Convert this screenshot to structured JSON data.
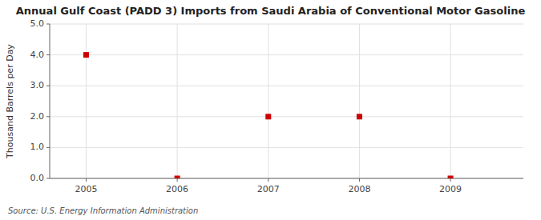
{
  "chart_data": {
    "type": "scatter",
    "title": "Annual Gulf Coast (PADD 3) Imports from Saudi Arabia of Conventional Motor Gasoline",
    "ylabel": "Thousand Barrels per Day",
    "source": "Source: U.S. Energy Information Administration",
    "x": [
      2005,
      2006,
      2007,
      2008,
      2009
    ],
    "values": [
      4.0,
      0.0,
      2.0,
      2.0,
      0.0
    ],
    "color": "#cc0000",
    "marker": "square",
    "xlim": [
      2004.6,
      2009.8
    ],
    "ylim": [
      0.0,
      5.0
    ],
    "xticks": [
      2005,
      2006,
      2007,
      2008,
      2009
    ],
    "yticks": [
      {
        "value": 0.0,
        "label": "0.0"
      },
      {
        "value": 1.0,
        "label": "1.0"
      },
      {
        "value": 2.0,
        "label": "2.0"
      },
      {
        "value": 3.0,
        "label": "3.0"
      },
      {
        "value": 4.0,
        "label": "4.0"
      },
      {
        "value": 5.0,
        "label": "5.0"
      }
    ],
    "grid": true
  }
}
